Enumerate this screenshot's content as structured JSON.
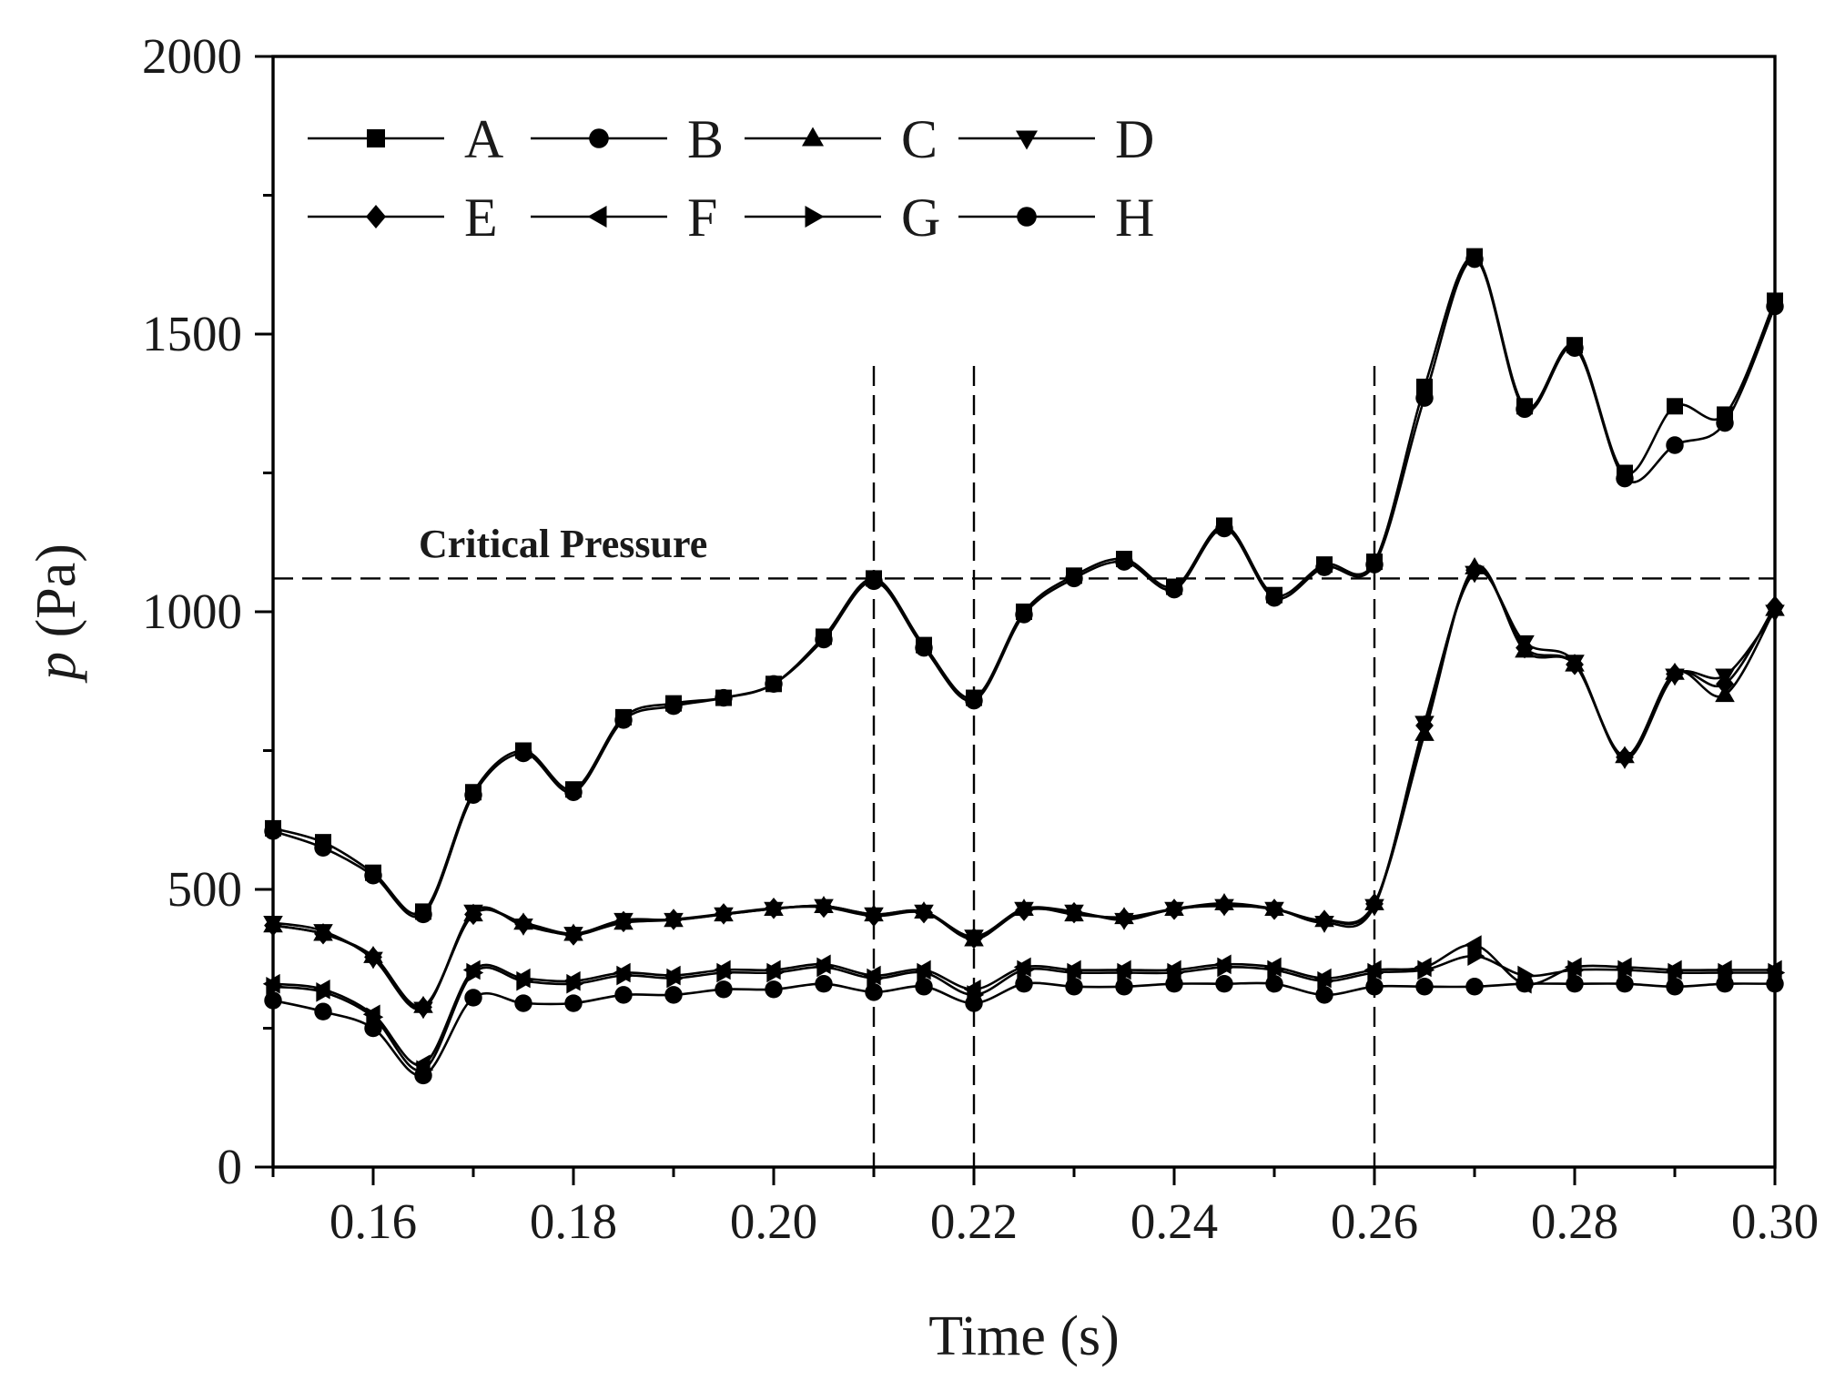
{
  "chart_data": {
    "type": "line",
    "title": "",
    "xlabel": "Time (s)",
    "ylabel_var": "p",
    "ylabel_unit": " (Pa)",
    "xlim": [
      0.15,
      0.3
    ],
    "ylim": [
      0,
      2000
    ],
    "xticks": [
      0.16,
      0.18,
      0.2,
      0.22,
      0.24,
      0.26,
      0.28,
      0.3
    ],
    "xtick_labels": [
      "0.16",
      "0.18",
      "0.20",
      "0.22",
      "0.24",
      "0.26",
      "0.28",
      "0.30"
    ],
    "yticks": [
      0,
      500,
      1000,
      1500,
      2000
    ],
    "ytick_labels": [
      "0",
      "500",
      "1000",
      "1500",
      "2000"
    ],
    "grid": false,
    "legend_position": "top-left",
    "x": [
      0.15,
      0.155,
      0.16,
      0.165,
      0.17,
      0.175,
      0.18,
      0.185,
      0.19,
      0.195,
      0.2,
      0.205,
      0.21,
      0.215,
      0.22,
      0.225,
      0.23,
      0.235,
      0.24,
      0.245,
      0.25,
      0.255,
      0.26,
      0.265,
      0.27,
      0.275,
      0.28,
      0.285,
      0.29,
      0.295,
      0.3
    ],
    "series": [
      {
        "name": "A",
        "marker": "square",
        "values": [
          610,
          585,
          530,
          460,
          675,
          750,
          680,
          810,
          835,
          845,
          870,
          955,
          1060,
          940,
          845,
          1000,
          1065,
          1095,
          1045,
          1155,
          1030,
          1085,
          1090,
          1405,
          1640,
          1370,
          1480,
          1250,
          1370,
          1355,
          1560
        ]
      },
      {
        "name": "B",
        "marker": "circle",
        "values": [
          605,
          575,
          525,
          455,
          670,
          745,
          675,
          805,
          830,
          845,
          870,
          950,
          1055,
          935,
          840,
          995,
          1060,
          1090,
          1040,
          1150,
          1025,
          1080,
          1085,
          1385,
          1635,
          1365,
          1475,
          1240,
          1300,
          1340,
          1550
        ]
      },
      {
        "name": "C",
        "marker": "triangle-up",
        "values": [
          435,
          420,
          380,
          290,
          455,
          440,
          420,
          440,
          445,
          455,
          465,
          470,
          455,
          460,
          410,
          465,
          455,
          450,
          465,
          475,
          465,
          445,
          475,
          780,
          1080,
          930,
          905,
          740,
          890,
          850,
          1005
        ]
      },
      {
        "name": "D",
        "marker": "triangle-down",
        "values": [
          440,
          425,
          375,
          285,
          460,
          435,
          420,
          445,
          445,
          455,
          465,
          470,
          455,
          460,
          415,
          465,
          460,
          445,
          465,
          470,
          465,
          440,
          470,
          800,
          1070,
          945,
          910,
          735,
          885,
          885,
          1000
        ]
      },
      {
        "name": "E",
        "marker": "diamond",
        "values": [
          435,
          420,
          378,
          288,
          455,
          438,
          418,
          442,
          446,
          456,
          466,
          468,
          452,
          458,
          412,
          462,
          458,
          448,
          464,
          472,
          464,
          444,
          474,
          795,
          1075,
          935,
          905,
          738,
          888,
          870,
          1010
        ]
      },
      {
        "name": "F",
        "marker": "triangle-left",
        "values": [
          330,
          320,
          275,
          185,
          355,
          340,
          335,
          350,
          345,
          355,
          355,
          365,
          345,
          355,
          320,
          360,
          355,
          355,
          355,
          365,
          360,
          340,
          355,
          360,
          400,
          330,
          360,
          360,
          355,
          355,
          355
        ]
      },
      {
        "name": "G",
        "marker": "triangle-right",
        "values": [
          325,
          315,
          270,
          175,
          350,
          335,
          330,
          345,
          340,
          350,
          350,
          360,
          340,
          350,
          310,
          355,
          350,
          350,
          350,
          360,
          355,
          335,
          350,
          355,
          380,
          345,
          355,
          355,
          350,
          350,
          350
        ]
      },
      {
        "name": "H",
        "marker": "circle",
        "values": [
          300,
          280,
          250,
          165,
          305,
          295,
          295,
          310,
          310,
          320,
          320,
          330,
          315,
          325,
          295,
          330,
          325,
          325,
          330,
          330,
          330,
          310,
          325,
          325,
          325,
          330,
          330,
          330,
          325,
          330,
          330
        ]
      }
    ],
    "annotations": {
      "critical_pressure_label": "Critical Pressure",
      "critical_pressure_value": 1060,
      "vertical_lines_x": [
        0.21,
        0.22,
        0.26
      ]
    }
  }
}
